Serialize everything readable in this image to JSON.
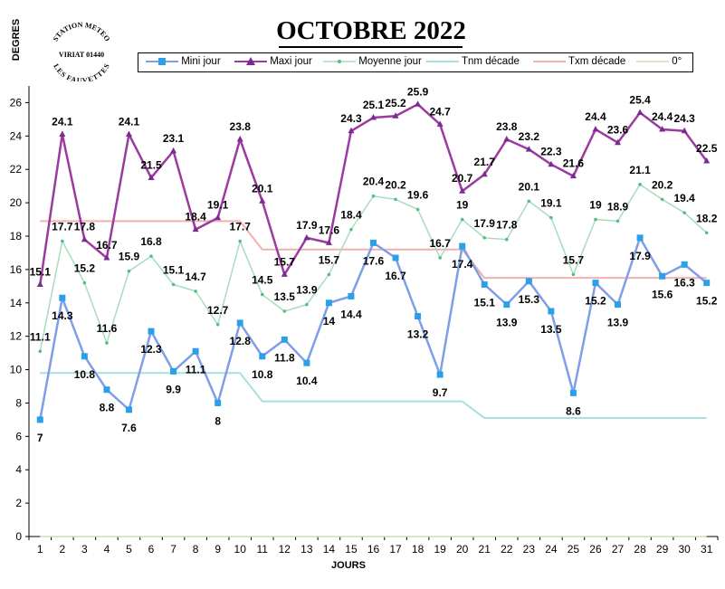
{
  "header": {
    "title": "OCTOBRE 2022",
    "y_axis_label": "DEGRES",
    "x_axis_label": "JOURS",
    "logo_text_top": "STATION METEO",
    "logo_text_mid": "VIRIAT 01440",
    "logo_text_bottom": "LES FAUVETTES"
  },
  "legend": [
    {
      "label": "Mini jour",
      "color": "#5b8fe8",
      "marker": "square-x"
    },
    {
      "label": "Maxi jour",
      "color": "#9c3aa0",
      "marker": "triangle"
    },
    {
      "label": "Moyenne jour",
      "color": "#8fd8a8",
      "marker": "dot"
    },
    {
      "label": "Tnm décade",
      "color": "#a8e0e0",
      "marker": "none"
    },
    {
      "label": "Txm décade",
      "color": "#f4b0b0",
      "marker": "none"
    },
    {
      "label": "0°",
      "color": "#c8e0b0",
      "marker": "none"
    }
  ],
  "chart_data": {
    "type": "line",
    "title": "OCTOBRE 2022",
    "xlabel": "JOURS",
    "ylabel": "DEGRES",
    "x": [
      1,
      2,
      3,
      4,
      5,
      6,
      7,
      8,
      9,
      10,
      11,
      12,
      13,
      14,
      15,
      16,
      17,
      18,
      19,
      20,
      21,
      22,
      23,
      24,
      25,
      26,
      27,
      28,
      29,
      30,
      31
    ],
    "ylim": [
      0,
      27
    ],
    "yticks": [
      0,
      2,
      4,
      6,
      8,
      10,
      12,
      14,
      16,
      18,
      20,
      22,
      24,
      26
    ],
    "grid": false,
    "legend_position": "top",
    "series": [
      {
        "name": "Mini jour",
        "color": "#7f9ee8",
        "marker_color": "#2aa0e8",
        "values": [
          7,
          14.3,
          10.8,
          8.8,
          7.6,
          12.3,
          9.9,
          11.1,
          8,
          12.8,
          10.8,
          11.8,
          10.4,
          14,
          14.4,
          17.6,
          16.7,
          13.2,
          9.7,
          17.4,
          15.1,
          13.9,
          15.3,
          13.5,
          8.6,
          15.2,
          13.9,
          17.9,
          15.6,
          16.3,
          15.2
        ],
        "labels": [
          "7",
          "14.3",
          "10.8",
          "8.8",
          "7.6",
          "12.3",
          "9.9",
          "11.1",
          "8",
          "12.8",
          "10.8",
          "11.8",
          "10.4",
          "14",
          "14.4",
          "17.6",
          "16.7",
          "13.2",
          "9.7",
          "17.4",
          "15.1",
          "13.9",
          "15.3",
          "13.5",
          "8.6",
          "15.2",
          "13.9",
          "17.9",
          "15.6",
          "16.3",
          "15.2"
        ]
      },
      {
        "name": "Maxi jour",
        "color": "#9c3aa0",
        "marker_color": "#7a2a90",
        "values": [
          15.1,
          24.1,
          17.8,
          16.7,
          24.1,
          21.5,
          23.1,
          18.4,
          19.1,
          23.8,
          20.1,
          15.7,
          17.9,
          17.6,
          24.3,
          25.1,
          25.2,
          25.9,
          24.7,
          20.7,
          21.7,
          23.8,
          23.2,
          22.3,
          21.6,
          24.4,
          23.6,
          25.4,
          24.4,
          24.3,
          22.5
        ],
        "labels": [
          "15.1",
          "24.1",
          "17.8",
          "16.7",
          "24.1",
          "21.5",
          "23.1",
          "18.4",
          "19.1",
          "23.8",
          "20.1",
          "15.7",
          "17.9",
          "17.6",
          "24.3",
          "25.1",
          "25.2",
          "25.9",
          "24.7",
          "20.7",
          "21.7",
          "23.8",
          "23.2",
          "22.3",
          "21.6",
          "24.4",
          "23.6",
          "25.4",
          "24.4",
          "24.3",
          "22.5"
        ]
      },
      {
        "name": "Moyenne jour",
        "color": "#a8dcc0",
        "marker_color": "#50c080",
        "values": [
          11.1,
          17.7,
          15.2,
          11.6,
          15.9,
          16.8,
          15.1,
          14.7,
          12.7,
          17.7,
          14.5,
          13.5,
          13.9,
          15.7,
          18.4,
          20.4,
          20.2,
          19.6,
          16.7,
          19,
          17.9,
          17.8,
          20.1,
          19.1,
          15.7,
          19,
          18.9,
          21.1,
          20.2,
          19.4,
          18.2
        ],
        "labels": [
          "11.1",
          "17.7",
          "15.2",
          "11.6",
          "15.9",
          "16.8",
          "15.1",
          "14.7",
          "12.7",
          "17.7",
          "14.5",
          "13.5",
          "13.9",
          "15.7",
          "18.4",
          "20.4",
          "20.2",
          "19.6",
          "16.7",
          "19",
          "17.9",
          "17.8",
          "20.1",
          "19.1",
          "15.7",
          "19",
          "18.9",
          "21.1",
          "20.2",
          "19.4",
          "18.2"
        ]
      },
      {
        "name": "Tnm décade",
        "color": "#a8e0e0",
        "values": [
          9.8,
          9.8,
          9.8,
          9.8,
          9.8,
          9.8,
          9.8,
          9.8,
          9.8,
          9.8,
          8.1,
          8.1,
          8.1,
          8.1,
          8.1,
          8.1,
          8.1,
          8.1,
          8.1,
          8.1,
          7.1,
          7.1,
          7.1,
          7.1,
          7.1,
          7.1,
          7.1,
          7.1,
          7.1,
          7.1,
          7.1
        ]
      },
      {
        "name": "Txm décade",
        "color": "#f4b0b0",
        "values": [
          18.9,
          18.9,
          18.9,
          18.9,
          18.9,
          18.9,
          18.9,
          18.9,
          18.9,
          18.9,
          17.2,
          17.2,
          17.2,
          17.2,
          17.2,
          17.2,
          17.2,
          17.2,
          17.2,
          17.2,
          15.5,
          15.5,
          15.5,
          15.5,
          15.5,
          15.5,
          15.5,
          15.5,
          15.5,
          15.5,
          15.5
        ]
      },
      {
        "name": "0°",
        "color": "#c8e0b0",
        "values": [
          0,
          0,
          0,
          0,
          0,
          0,
          0,
          0,
          0,
          0,
          0,
          0,
          0,
          0,
          0,
          0,
          0,
          0,
          0,
          0,
          0,
          0,
          0,
          0,
          0,
          0,
          0,
          0,
          0,
          0,
          0
        ]
      }
    ]
  }
}
